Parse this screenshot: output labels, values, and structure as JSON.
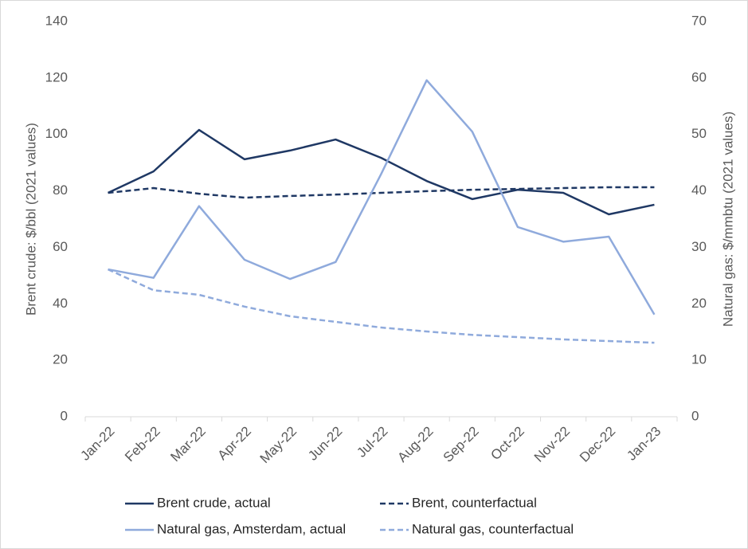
{
  "chart_data": {
    "type": "line",
    "categories": [
      "Jan-22",
      "Feb-22",
      "Mar-22",
      "Apr-22",
      "May-22",
      "Jun-22",
      "Jul-22",
      "Aug-22",
      "Sep-22",
      "Oct-22",
      "Nov-22",
      "Dec-22",
      "Jan-23"
    ],
    "y_label": "Brent crude: $/bbl (2021 values)",
    "y2_label": "Natural gas: $/mmbtu (2021 values)",
    "ylim": [
      0,
      140
    ],
    "yticks": [
      0,
      20,
      40,
      60,
      80,
      100,
      120,
      140
    ],
    "y2lim": [
      0,
      70
    ],
    "y2ticks": [
      0,
      10,
      20,
      30,
      40,
      50,
      60,
      70
    ],
    "legend": "bottom",
    "series": [
      {
        "name": "Brent crude, actual",
        "color": "#1f3864",
        "dashed": false,
        "values": [
          79.3,
          86.9,
          101.6,
          91.2,
          94.3,
          98.2,
          91.7,
          83.5,
          77.1,
          80.4,
          79.3,
          71.7,
          75.1
        ]
      },
      {
        "name": "Brent, counterfactual",
        "color": "#1f3864",
        "dashed": true,
        "values": [
          79.3,
          81.0,
          79.0,
          77.6,
          78.2,
          78.7,
          79.3,
          79.9,
          80.4,
          80.7,
          81.0,
          81.3,
          81.3
        ]
      },
      {
        "name": "Natural gas, Amsterdam, actual",
        "color": "#8faadc",
        "dashed": false,
        "axis": "y2",
        "values": [
          26.1,
          24.6,
          37.3,
          27.8,
          24.4,
          27.4,
          43.0,
          59.6,
          50.5,
          33.6,
          31.0,
          31.9,
          18.1
        ]
      },
      {
        "name": "Natural gas, counterfactual",
        "color": "#8faadc",
        "dashed": true,
        "axis": "y2",
        "values": [
          26.1,
          22.4,
          21.6,
          19.5,
          17.8,
          16.8,
          15.8,
          15.1,
          14.5,
          14.1,
          13.7,
          13.4,
          13.1
        ]
      }
    ]
  }
}
